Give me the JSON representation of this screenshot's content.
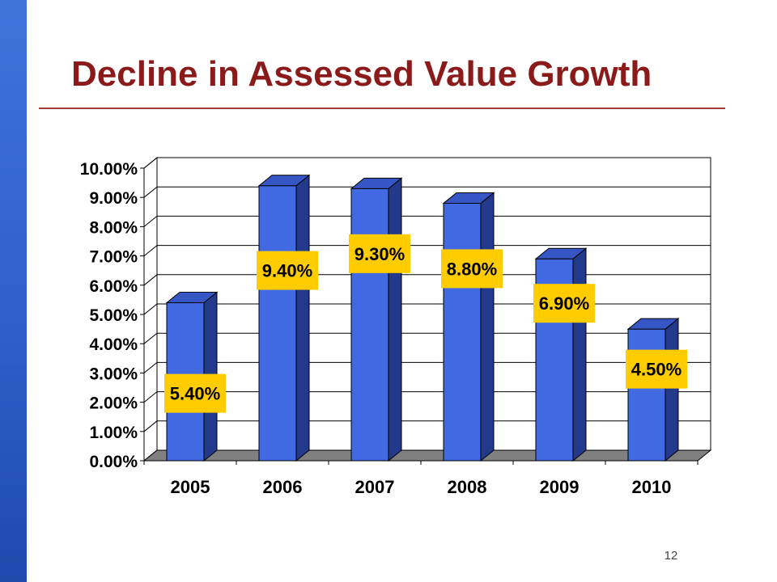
{
  "slide": {
    "title": "Decline in Assessed Value Growth",
    "page_number": "12",
    "accent_bar_color": "#2f5fc8",
    "title_color": "#8b1a1a"
  },
  "chart_data": {
    "type": "bar",
    "style": "3d-column",
    "title": "",
    "xlabel": "",
    "ylabel": "",
    "categories": [
      "2005",
      "2006",
      "2007",
      "2008",
      "2009",
      "2010"
    ],
    "values": [
      5.4,
      9.4,
      9.3,
      8.8,
      6.9,
      4.5
    ],
    "value_labels": [
      "5.40%",
      "9.40%",
      "9.30%",
      "8.80%",
      "6.90%",
      "4.50%"
    ],
    "ylim": [
      0,
      10
    ],
    "y_ticks": [
      "0.00%",
      "1.00%",
      "2.00%",
      "3.00%",
      "4.00%",
      "5.00%",
      "6.00%",
      "7.00%",
      "8.00%",
      "9.00%",
      "10.00%"
    ],
    "grid": true,
    "legend": "none",
    "colors": {
      "bar_front": "#4169e1",
      "bar_side": "#233a8c",
      "bar_top": "#3556c4",
      "label_bg": "#ffcc00",
      "floor": "#808080"
    }
  }
}
